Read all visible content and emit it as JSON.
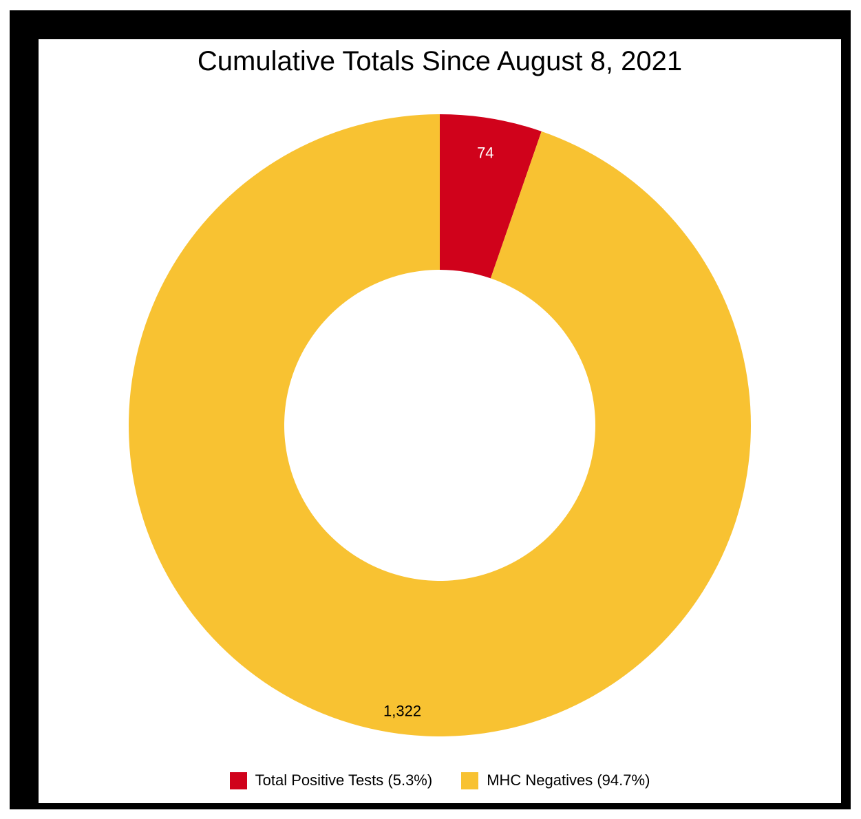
{
  "chart_data": {
    "type": "pie",
    "title": "Cumulative Totals Since August 8, 2021",
    "donut": true,
    "start_angle_deg": 0,
    "slices": [
      {
        "label": "Total Positive Tests",
        "value": 74,
        "value_label": "74",
        "percent_label": "5.3%",
        "legend_text": "Total Positive Tests (5.3%)",
        "color": "#D0021B",
        "label_color": "#ffffff"
      },
      {
        "label": "MHC Negatives",
        "value": 1322,
        "value_label": "1,322",
        "percent_label": "94.7%",
        "legend_text": "MHC Negatives (94.7%)",
        "color": "#F8C232",
        "label_color": "#000000"
      }
    ],
    "legend_position": "bottom",
    "frame_color": "#000000"
  }
}
